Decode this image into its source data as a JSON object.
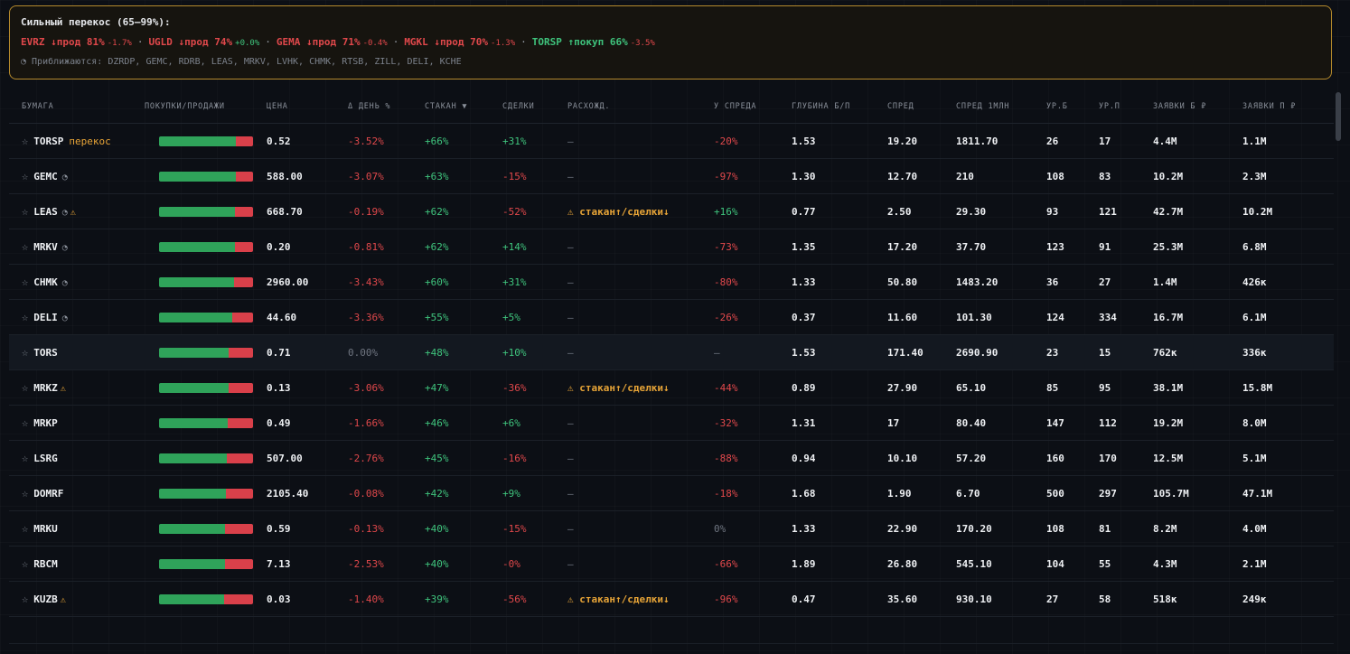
{
  "alert": {
    "title": "Сильный перекос (65–99%):",
    "items": [
      {
        "text": "EVRZ ↓прод 81%",
        "change": "-1.7%",
        "side": "sell",
        "chg_dir": "down"
      },
      {
        "text": "UGLD ↓прод 74%",
        "change": "+0.0%",
        "side": "sell",
        "chg_dir": "up"
      },
      {
        "text": "GEMA ↓прод 71%",
        "change": "-0.4%",
        "side": "sell",
        "chg_dir": "down"
      },
      {
        "text": "MGKL ↓прод 70%",
        "change": "-1.3%",
        "side": "sell",
        "chg_dir": "down"
      },
      {
        "text": "TORSP ↑покуп 66%",
        "change": "-3.5%",
        "side": "buy",
        "chg_dir": "down"
      }
    ],
    "separator": "·",
    "approaching": "◔ Приближаются: DZRDP, GEMC, RDRB, LEAS, MRKV, LVHK, CHMK, RTSB, ZILL, DELI, KCHE"
  },
  "columns": [
    "БУМАГА",
    "ПОКУПКИ/ПРОДАЖИ",
    "ЦЕНА",
    "Δ ДЕНЬ %",
    "СТАКАН ▼",
    "СДЕЛКИ",
    "РАСХОЖД.",
    "У СПРЕДА",
    "ГЛУБИНА Б/П",
    "СПРЕД",
    "СПРЕД 1МЛН",
    "УР.Б",
    "УР.П",
    "ЗАЯВКИ Б ₽",
    "ЗАЯВКИ П ₽"
  ],
  "colors": {
    "buy": "#2fa35a",
    "sell": "#d9404a",
    "accent": "#e7a437",
    "up": "#3fc47d",
    "down": "#e0484b"
  },
  "rows": [
    {
      "sym": "TORSP",
      "flag": "перекос",
      "clock": false,
      "warn": false,
      "buy": 0.82,
      "price": "0.52",
      "day": "-3.52%",
      "book": "+66%",
      "trades": "+31%",
      "div": "—",
      "spread_near": "-20%",
      "depth": "1.53",
      "spread": "19.20",
      "spread1m": "1811.70",
      "lb": "26",
      "ls": "17",
      "ob": "4.4M",
      "os": "1.1M"
    },
    {
      "sym": "GEMC",
      "flag": "",
      "clock": true,
      "warn": false,
      "buy": 0.82,
      "price": "588.00",
      "day": "-3.07%",
      "book": "+63%",
      "trades": "-15%",
      "div": "—",
      "spread_near": "-97%",
      "depth": "1.30",
      "spread": "12.70",
      "spread1m": "210",
      "lb": "108",
      "ls": "83",
      "ob": "10.2M",
      "os": "2.3M"
    },
    {
      "sym": "LEAS",
      "flag": "",
      "clock": true,
      "warn": true,
      "buy": 0.81,
      "price": "668.70",
      "day": "-0.19%",
      "book": "+62%",
      "trades": "-52%",
      "div": "⚠ стакан↑/сделки↓",
      "spread_near": "+16%",
      "depth": "0.77",
      "spread": "2.50",
      "spread1m": "29.30",
      "lb": "93",
      "ls": "121",
      "ob": "42.7M",
      "os": "10.2M"
    },
    {
      "sym": "MRKV",
      "flag": "",
      "clock": true,
      "warn": false,
      "buy": 0.81,
      "price": "0.20",
      "day": "-0.81%",
      "book": "+62%",
      "trades": "+14%",
      "div": "—",
      "spread_near": "-73%",
      "depth": "1.35",
      "spread": "17.20",
      "spread1m": "37.70",
      "lb": "123",
      "ls": "91",
      "ob": "25.3M",
      "os": "6.8M"
    },
    {
      "sym": "CHMK",
      "flag": "",
      "clock": true,
      "warn": false,
      "buy": 0.8,
      "price": "2960.00",
      "day": "-3.43%",
      "book": "+60%",
      "trades": "+31%",
      "div": "—",
      "spread_near": "-80%",
      "depth": "1.33",
      "spread": "50.80",
      "spread1m": "1483.20",
      "lb": "36",
      "ls": "27",
      "ob": "1.4M",
      "os": "426к"
    },
    {
      "sym": "DELI",
      "flag": "",
      "clock": true,
      "warn": false,
      "buy": 0.78,
      "price": "44.60",
      "day": "-3.36%",
      "book": "+55%",
      "trades": "+5%",
      "div": "—",
      "spread_near": "-26%",
      "depth": "0.37",
      "spread": "11.60",
      "spread1m": "101.30",
      "lb": "124",
      "ls": "334",
      "ob": "16.7M",
      "os": "6.1M"
    },
    {
      "sym": "TORS",
      "flag": "",
      "clock": false,
      "warn": false,
      "buy": 0.74,
      "price": "0.71",
      "day": "0.00%",
      "book": "+48%",
      "trades": "+10%",
      "div": "—",
      "spread_near": "—",
      "depth": "1.53",
      "spread": "171.40",
      "spread1m": "2690.90",
      "lb": "23",
      "ls": "15",
      "ob": "762к",
      "os": "336к",
      "highlight": true
    },
    {
      "sym": "MRKZ",
      "flag": "",
      "clock": false,
      "warn": true,
      "buy": 0.74,
      "price": "0.13",
      "day": "-3.06%",
      "book": "+47%",
      "trades": "-36%",
      "div": "⚠ стакан↑/сделки↓",
      "spread_near": "-44%",
      "depth": "0.89",
      "spread": "27.90",
      "spread1m": "65.10",
      "lb": "85",
      "ls": "95",
      "ob": "38.1M",
      "os": "15.8M"
    },
    {
      "sym": "MRKP",
      "flag": "",
      "clock": false,
      "warn": false,
      "buy": 0.73,
      "price": "0.49",
      "day": "-1.66%",
      "book": "+46%",
      "trades": "+6%",
      "div": "—",
      "spread_near": "-32%",
      "depth": "1.31",
      "spread": "17",
      "spread1m": "80.40",
      "lb": "147",
      "ls": "112",
      "ob": "19.2M",
      "os": "8.0M"
    },
    {
      "sym": "LSRG",
      "flag": "",
      "clock": false,
      "warn": false,
      "buy": 0.72,
      "price": "507.00",
      "day": "-2.76%",
      "book": "+45%",
      "trades": "-16%",
      "div": "—",
      "spread_near": "-88%",
      "depth": "0.94",
      "spread": "10.10",
      "spread1m": "57.20",
      "lb": "160",
      "ls": "170",
      "ob": "12.5M",
      "os": "5.1M"
    },
    {
      "sym": "DOMRF",
      "flag": "",
      "clock": false,
      "warn": false,
      "buy": 0.71,
      "price": "2105.40",
      "day": "-0.08%",
      "book": "+42%",
      "trades": "+9%",
      "div": "—",
      "spread_near": "-18%",
      "depth": "1.68",
      "spread": "1.90",
      "spread1m": "6.70",
      "lb": "500",
      "ls": "297",
      "ob": "105.7M",
      "os": "47.1M"
    },
    {
      "sym": "MRKU",
      "flag": "",
      "clock": false,
      "warn": false,
      "buy": 0.7,
      "price": "0.59",
      "day": "-0.13%",
      "book": "+40%",
      "trades": "-15%",
      "div": "—",
      "spread_near": "0%",
      "depth": "1.33",
      "spread": "22.90",
      "spread1m": "170.20",
      "lb": "108",
      "ls": "81",
      "ob": "8.2M",
      "os": "4.0M"
    },
    {
      "sym": "RBCM",
      "flag": "",
      "clock": false,
      "warn": false,
      "buy": 0.7,
      "price": "7.13",
      "day": "-2.53%",
      "book": "+40%",
      "trades": "-0%",
      "div": "—",
      "spread_near": "-66%",
      "depth": "1.89",
      "spread": "26.80",
      "spread1m": "545.10",
      "lb": "104",
      "ls": "55",
      "ob": "4.3M",
      "os": "2.1M"
    },
    {
      "sym": "KUZB",
      "flag": "",
      "clock": false,
      "warn": true,
      "buy": 0.69,
      "price": "0.03",
      "day": "-1.40%",
      "book": "+39%",
      "trades": "-56%",
      "div": "⚠ стакан↑/сделки↓",
      "spread_near": "-96%",
      "depth": "0.47",
      "spread": "35.60",
      "spread1m": "930.10",
      "lb": "27",
      "ls": "58",
      "ob": "518к",
      "os": "249к"
    }
  ]
}
